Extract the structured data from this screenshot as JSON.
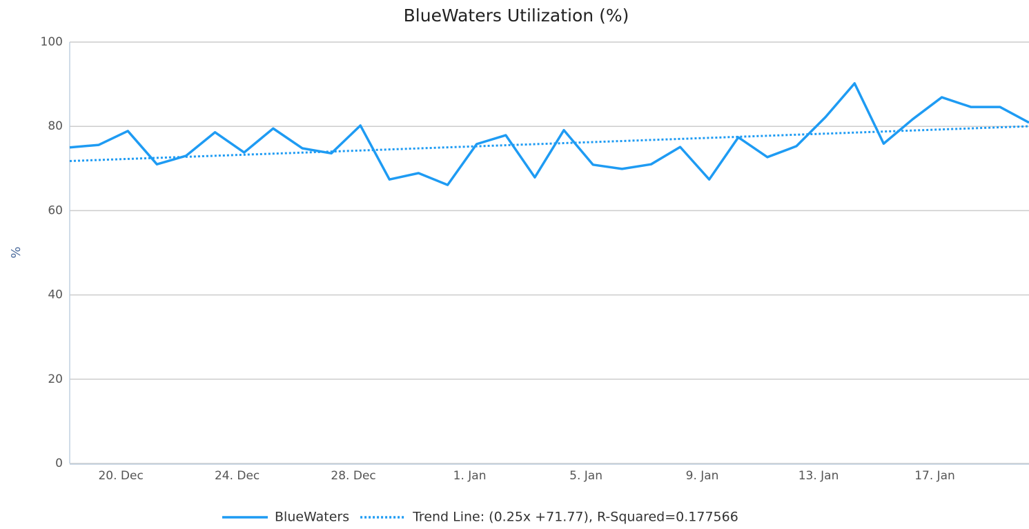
{
  "chart_data": {
    "type": "line",
    "title": "BlueWaters Utilization (%)",
    "y_label": "%",
    "categories": [
      null,
      null,
      "20. Dec",
      null,
      null,
      null,
      "24. Dec",
      null,
      null,
      null,
      "28. Dec",
      null,
      null,
      null,
      "1. Jan",
      null,
      null,
      null,
      "5. Jan",
      null,
      null,
      null,
      "9. Jan",
      null,
      null,
      null,
      "13. Jan",
      null,
      null,
      null,
      "17. Jan",
      null,
      null,
      null
    ],
    "series": [
      {
        "name": "BlueWaters",
        "color": "#1e9bf3",
        "style": "solid",
        "values": [
          75.0,
          75.6,
          78.9,
          71.0,
          73.0,
          78.6,
          73.8,
          79.5,
          74.8,
          73.6,
          80.2,
          67.4,
          68.9,
          66.1,
          75.8,
          77.9,
          67.9,
          79.1,
          70.9,
          69.9,
          71.0,
          75.1,
          67.4,
          77.4,
          72.7,
          75.3,
          82.2,
          90.2,
          75.9,
          81.7,
          86.9,
          84.6,
          84.6,
          80.9
        ]
      },
      {
        "name": "Trend Line: (0.25x +71.77), R-Squared=0.177566",
        "color": "#1e9bf3",
        "style": "dotted",
        "values": [
          71.77,
          72.02,
          72.27,
          72.52,
          72.77,
          73.02,
          73.27,
          73.52,
          73.77,
          74.02,
          74.27,
          74.52,
          74.77,
          75.02,
          75.27,
          75.52,
          75.77,
          76.02,
          76.27,
          76.52,
          76.77,
          77.02,
          77.27,
          77.52,
          77.77,
          78.02,
          78.27,
          78.52,
          78.77,
          79.02,
          79.27,
          79.52,
          79.77,
          80.02
        ]
      }
    ],
    "ylim": [
      0,
      100
    ],
    "yticks": [
      0,
      20,
      40,
      60,
      80,
      100
    ],
    "grid": true
  }
}
